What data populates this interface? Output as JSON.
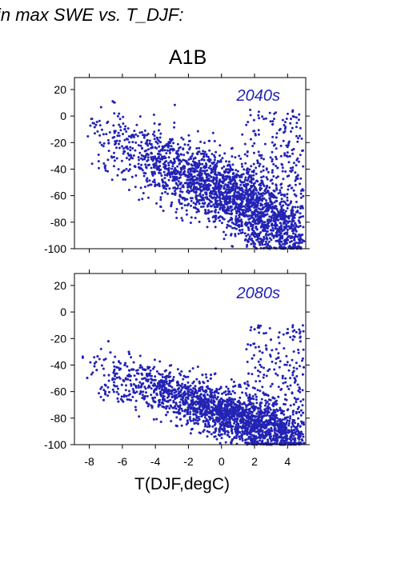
{
  "header": {
    "title": "in max SWE vs. T_DJF:"
  },
  "scenario": "A1B",
  "colors": {
    "points": "#2323b4",
    "period_label": "#2323b4"
  },
  "chart_data": [
    {
      "type": "scatter",
      "period_label": "2040s",
      "xlabel": "",
      "ylabel": "",
      "xlim": [
        -8.9,
        5.1
      ],
      "ylim": [
        -100,
        29
      ],
      "yticks": [
        20,
        0,
        -20,
        -40,
        -60,
        -80,
        -100
      ],
      "ytick_labels": [
        "20",
        "0",
        "-20",
        "-40",
        "-60",
        "-80",
        "-100"
      ],
      "xticks": [
        -8,
        -6,
        -4,
        -2,
        0,
        2,
        4
      ],
      "xtick_labels": [],
      "grid": false,
      "point_cloud": {
        "n_points": 2500,
        "main_trend": {
          "x_range": [
            -8.5,
            5
          ],
          "y_at_x_min": -10,
          "y_at_x_max": -85,
          "spread": 22
        },
        "secondary_branch": {
          "x_range": [
            1.5,
            5
          ],
          "y_range": [
            -100,
            5
          ]
        },
        "floor": -100
      }
    },
    {
      "type": "scatter",
      "period_label": "2080s",
      "xlabel": "T(DJF,degC)",
      "ylabel": "",
      "xlim": [
        -8.9,
        5.1
      ],
      "ylim": [
        -100,
        29
      ],
      "yticks": [
        20,
        0,
        -20,
        -40,
        -60,
        -80,
        -100
      ],
      "ytick_labels": [
        "20",
        "0",
        "-20",
        "-40",
        "-60",
        "-80",
        "-100"
      ],
      "xticks": [
        -8,
        -6,
        -4,
        -2,
        0,
        2,
        4
      ],
      "xtick_labels": [
        "-8",
        "-6",
        "-4",
        "-2",
        "0",
        "2",
        "4"
      ],
      "grid": false,
      "point_cloud": {
        "n_points": 2500,
        "main_trend": {
          "x_range": [
            -8.5,
            5
          ],
          "y_at_x_min": -40,
          "y_at_x_max": -95,
          "spread": 16
        },
        "secondary_branch": {
          "x_range": [
            1.5,
            5
          ],
          "y_range": [
            -100,
            -10
          ]
        },
        "floor": -100
      }
    }
  ]
}
